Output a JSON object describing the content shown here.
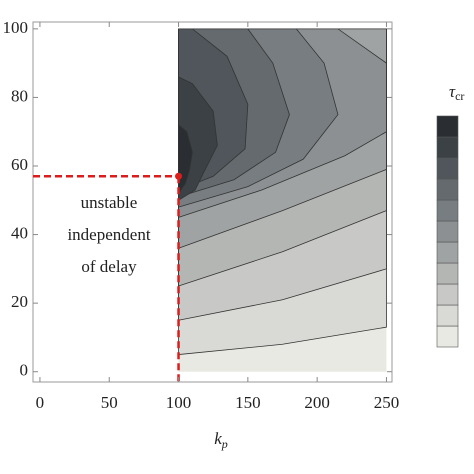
{
  "chart_data": {
    "type": "contour",
    "xlabel": {
      "base": "k",
      "sub": "p"
    },
    "xlim": [
      -5,
      254
    ],
    "ylim": [
      -3,
      102
    ],
    "xticks": [
      0,
      50,
      100,
      150,
      200,
      250
    ],
    "yticks": [
      0,
      20,
      40,
      60,
      80,
      100
    ],
    "line_color": "#333333",
    "levels": [
      {
        "color": "#e9e9e3",
        "x": [
          100,
          250,
          250,
          100
        ],
        "y": [
          0,
          0,
          100,
          100
        ]
      },
      {
        "color": "#d9dad6",
        "x": [
          100,
          175,
          250,
          250,
          100
        ],
        "y": [
          5,
          8,
          13,
          100,
          100
        ]
      },
      {
        "color": "#c8c9c6",
        "x": [
          100,
          175,
          250,
          250,
          100
        ],
        "y": [
          15,
          21,
          30,
          100,
          100
        ]
      },
      {
        "color": "#b4b6b4",
        "x": [
          100,
          175,
          250,
          250,
          100
        ],
        "y": [
          25,
          35,
          47,
          100,
          100
        ]
      },
      {
        "color": "#a0a3a3",
        "x": [
          100,
          175,
          250,
          250,
          100
        ],
        "y": [
          36,
          47,
          59,
          100,
          100
        ]
      },
      {
        "color": "#8c9092",
        "x": [
          100,
          160,
          220,
          250,
          250,
          215,
          100
        ],
        "y": [
          45,
          53,
          63,
          70,
          90,
          100,
          100
        ]
      },
      {
        "color": "#777d80",
        "x": [
          100,
          150,
          190,
          215,
          205,
          185,
          100
        ],
        "y": [
          48,
          54,
          62,
          75,
          90,
          100,
          100
        ]
      },
      {
        "color": "#646a6e",
        "x": [
          100,
          140,
          170,
          180,
          168,
          150,
          100
        ],
        "y": [
          51,
          56,
          64,
          75,
          90,
          100,
          100
        ]
      },
      {
        "color": "#50565b",
        "x": [
          100,
          125,
          148,
          150,
          135,
          110,
          100
        ],
        "y": [
          53,
          57,
          65,
          78,
          92,
          100,
          100
        ]
      },
      {
        "color": "#3b4145",
        "x": [
          100,
          112,
          118,
          128,
          125,
          110,
          100
        ],
        "y": [
          50,
          53,
          58,
          66,
          76,
          84,
          86
        ]
      },
      {
        "color": "#2a2e32",
        "x": [
          100,
          105,
          108,
          110,
          106,
          100
        ],
        "y": [
          52,
          55,
          59,
          64,
          70,
          72
        ]
      }
    ],
    "critical_point": {
      "x": 100,
      "y": 57,
      "color": "#dd1c1c"
    },
    "annotation": [
      "unstable",
      "independent",
      "of delay"
    ],
    "colorbar_label": {
      "base": "τ",
      "sub": "cr"
    }
  }
}
